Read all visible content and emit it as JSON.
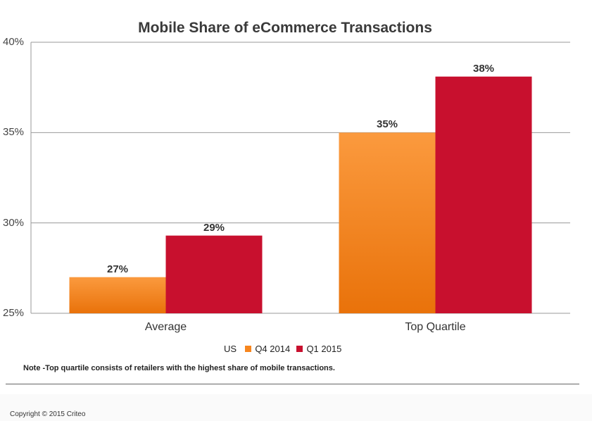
{
  "chart_data": {
    "type": "bar",
    "title": "Mobile Share of eCommerce Transactions",
    "categories": [
      "Average",
      "Top Quartile"
    ],
    "series": [
      {
        "name": "Q4 2014",
        "values": [
          27,
          35
        ],
        "labels": [
          "27%",
          "35%"
        ],
        "color": "#f7861e"
      },
      {
        "name": "Q1 2015",
        "values": [
          29.3,
          38.1
        ],
        "labels": [
          "29%",
          "38%"
        ],
        "color": "#c8102e"
      }
    ],
    "ylim": [
      25,
      40
    ],
    "yticks": [
      "25%",
      "30%",
      "35%",
      "40%"
    ],
    "grid": true,
    "legend_position": "bottom",
    "legend_prefix": "US"
  },
  "note": "Note -Top quartile consists of retailers with the highest share of mobile transactions.",
  "copyright": "Copyright © 2015 Criteo"
}
